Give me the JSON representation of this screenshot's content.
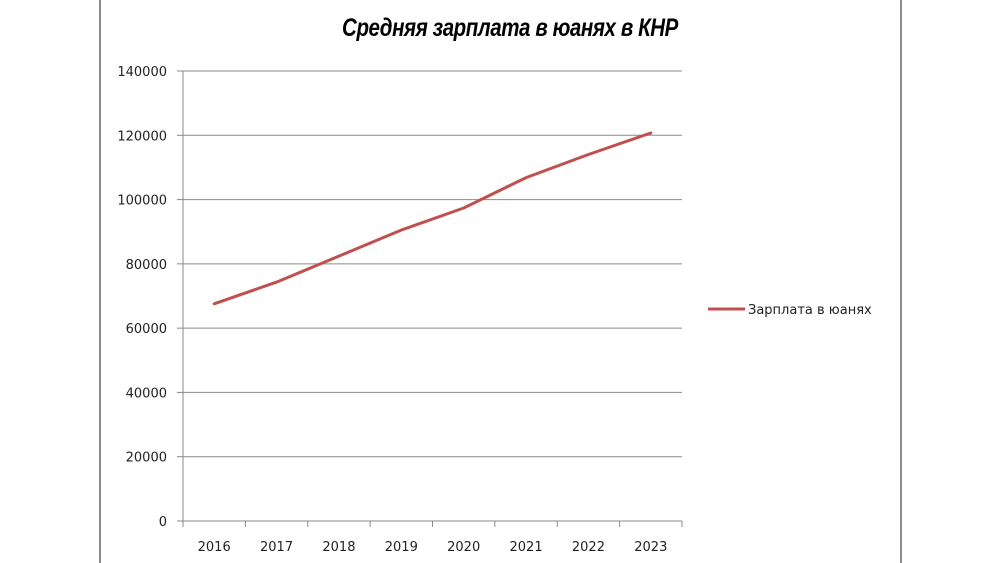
{
  "chart_data": {
    "type": "line",
    "title": "Средняя зарплата в юанях в КНР",
    "xlabel": "",
    "ylabel": "",
    "categories": [
      "2016",
      "2017",
      "2018",
      "2019",
      "2020",
      "2021",
      "2022",
      "2023"
    ],
    "series": [
      {
        "name": "Зарплата в юанях",
        "color": "#c0504d",
        "values": [
          67569,
          74318,
          82413,
          90501,
          97379,
          106837,
          114029,
          120698
        ]
      }
    ],
    "ylim": [
      0,
      140000
    ],
    "yticks": [
      "0",
      "20000",
      "40000",
      "60000",
      "80000",
      "100000",
      "120000",
      "140000"
    ],
    "grid": "horizontal",
    "legend_position": "right"
  }
}
